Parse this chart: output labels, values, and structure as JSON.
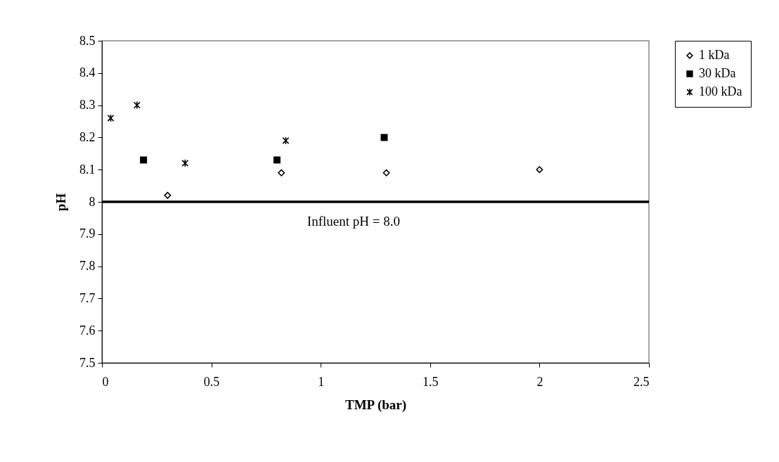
{
  "chart_data": {
    "type": "scatter",
    "xlabel": "TMP (bar)",
    "ylabel": "pH",
    "xlim": [
      0,
      2.5
    ],
    "xticks": [
      0,
      0.5,
      1,
      1.5,
      2,
      2.5
    ],
    "ylim": [
      7.5,
      8.5
    ],
    "yticks": [
      7.5,
      7.6,
      7.7,
      7.8,
      7.9,
      8,
      8.1,
      8.2,
      8.3,
      8.4,
      8.5
    ],
    "grid": false,
    "legend": "right",
    "series": [
      {
        "name": "1 kDa",
        "color": "#000000",
        "marker": "diamond",
        "x": [
          0.3,
          0.82,
          1.3,
          2.0
        ],
        "values": [
          8.02,
          8.09,
          8.09,
          8.1
        ]
      },
      {
        "name": "30 kDa",
        "color": "#000000",
        "marker": "square",
        "x": [
          0.19,
          0.8,
          1.29
        ],
        "values": [
          8.13,
          8.13,
          8.2
        ]
      },
      {
        "name": "100 kDa",
        "color": "#000000",
        "marker": "cross",
        "x": [
          0.04,
          0.16,
          0.38,
          0.84
        ],
        "values": [
          8.26,
          8.3,
          8.12,
          8.19
        ]
      }
    ],
    "ref_lines": [
      {
        "axis": "y",
        "value": 8,
        "label": "Influent pH = 8.0",
        "color": "#000000",
        "line_style": "solid"
      }
    ]
  }
}
